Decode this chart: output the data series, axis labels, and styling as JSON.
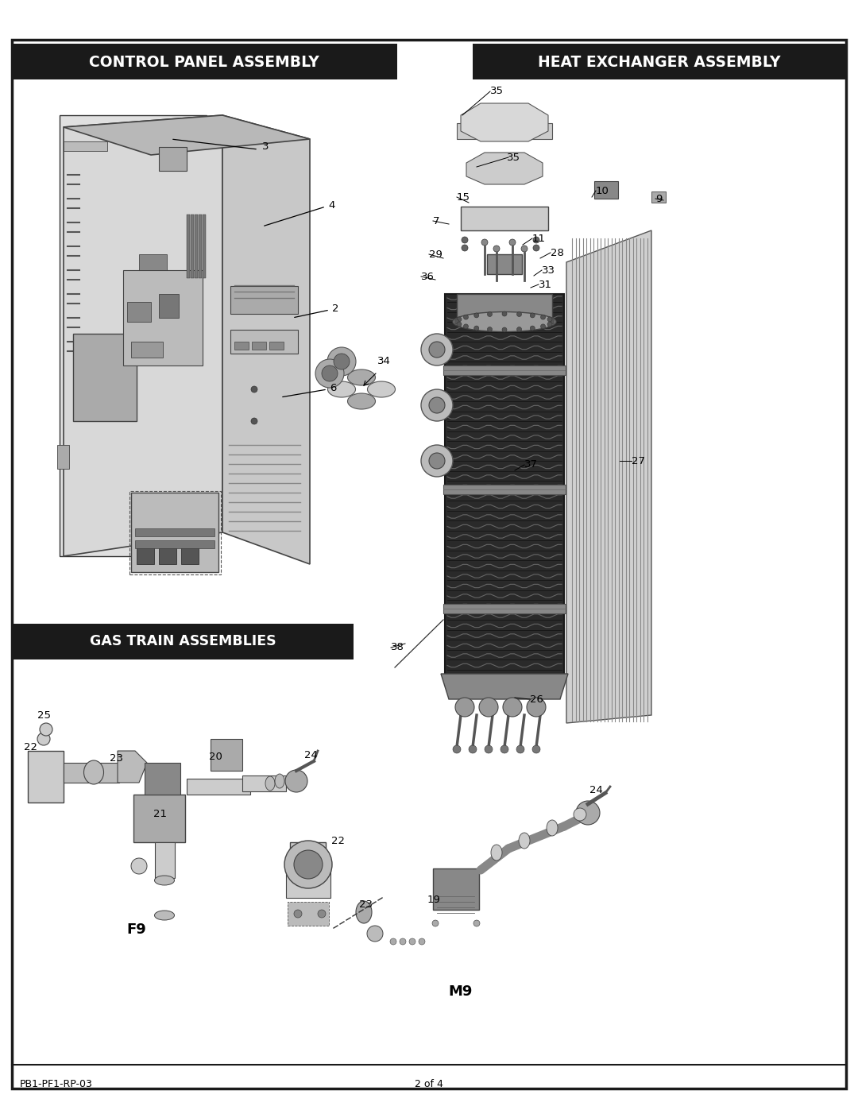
{
  "page_bg": "#ffffff",
  "border_color": "#1a1a1a",
  "header_bg": "#1a1a1a",
  "header_text_color": "#ffffff",
  "section_left_title": "CONTROL PANEL ASSEMBLY",
  "section_right_title": "HEAT EXCHANGER ASSEMBLY",
  "section_gas_title": "GAS TRAIN ASSEMBLIES",
  "footer_left": "PB1-PF1-RP-03",
  "footer_center": "2 of 4",
  "fig_w": 10.8,
  "fig_h": 13.97,
  "dpi": 100
}
